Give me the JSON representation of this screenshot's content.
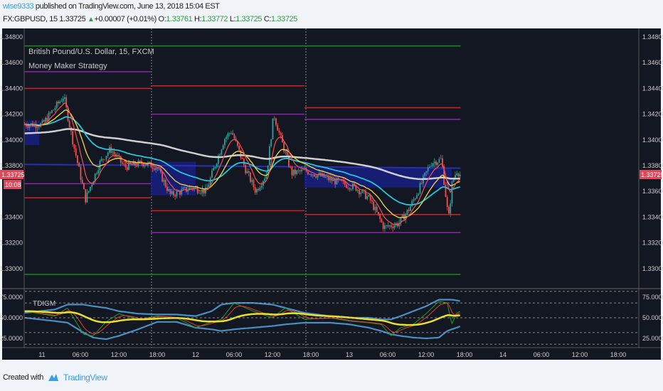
{
  "header": {
    "user": "wise9333",
    "published": " published on TradingView.com, June 13, 2018 15:04 EST",
    "symbol": "FX:GBPUSD, 15",
    "last": "1.33725",
    "change": "+0.00007 (+0.01%)",
    "o_label": "O:",
    "o": "1.33761",
    "h_label": "H:",
    "h": "1.33772",
    "l_label": "L:",
    "l": "1.33725",
    "c_label": "C:",
    "c": "1.33725"
  },
  "legend": {
    "title": "British Pound/U.S. Dollar, 15, FXCM",
    "strategy": "Money Maker Strategy",
    "indicator": "TDIGM"
  },
  "price_label": "1.33725",
  "countdown": "10:08",
  "footer": {
    "created": "Created with",
    "brand": "TradingView"
  },
  "colors": {
    "bg": "#131722",
    "up": "#26a69a",
    "down": "#ef5350",
    "level_red": "#d42020",
    "level_purple": "#8e24aa",
    "level_green": "#1b8a1b",
    "price_tag": "#e0485a"
  },
  "chart_data": {
    "type": "candlestick",
    "title": "British Pound/U.S. Dollar, 15, FXCM",
    "price_ticks": [
      "1.34800",
      "1.34600",
      "1.34400",
      "1.34200",
      "1.34000",
      "1.33800",
      "1.33600",
      "1.33400",
      "1.33200",
      "1.33000"
    ],
    "ylim": [
      1.3292,
      1.3495
    ],
    "time_ticks": [
      "11",
      "06:00",
      "12:00",
      "18:00",
      "12",
      "06:00",
      "12:00",
      "18:00",
      "13",
      "06:00",
      "12:00",
      "18:00",
      "14",
      "06:00",
      "12:00",
      "18:00"
    ],
    "price_path_hours": [
      -2.7,
      0,
      3.4,
      4.6,
      6.8,
      9,
      10.7,
      12.9,
      15.7,
      17.9,
      20.1,
      23.4,
      25.6,
      26.8,
      28.5,
      29.6,
      31.8,
      33.4,
      35.1,
      36.2,
      37.3,
      39,
      41.2,
      45.7,
      49,
      51.2,
      53.4,
      55.7,
      57.3,
      59,
      60.7,
      62.4,
      63.5,
      64.1,
      64.8,
      65.4
    ],
    "price_path": [
      1.3412,
      1.3412,
      1.3434,
      1.3404,
      1.3354,
      1.3382,
      1.3393,
      1.3379,
      1.3382,
      1.3379,
      1.3357,
      1.3363,
      1.336,
      1.3377,
      1.3401,
      1.3407,
      1.3377,
      1.336,
      1.3374,
      1.342,
      1.3401,
      1.3374,
      1.3376,
      1.3368,
      1.3363,
      1.3354,
      1.3332,
      1.3335,
      1.3346,
      1.3363,
      1.3382,
      1.3385,
      1.3338,
      1.3368,
      1.3376,
      1.33725
    ],
    "levels": [
      {
        "color": "green",
        "price": 1.3473,
        "from": -2.7,
        "to": 65.4
      },
      {
        "color": "green",
        "price": 1.32955,
        "from": -2.7,
        "to": 65.4
      },
      {
        "color": "purple",
        "price": 1.3453,
        "from": -2.7,
        "to": 17
      },
      {
        "color": "red",
        "price": 1.344,
        "from": -2.7,
        "to": 17
      },
      {
        "color": "purple",
        "price": 1.3366,
        "from": -2.7,
        "to": 17
      },
      {
        "color": "red",
        "price": 1.3355,
        "from": -2.7,
        "to": 17
      },
      {
        "color": "red",
        "price": 1.3442,
        "from": 17,
        "to": 41
      },
      {
        "color": "purple",
        "price": 1.342,
        "from": 17,
        "to": 41
      },
      {
        "color": "red",
        "price": 1.3345,
        "from": 17,
        "to": 41
      },
      {
        "color": "purple",
        "price": 1.3328,
        "from": 17,
        "to": 41
      },
      {
        "color": "red",
        "price": 1.3425,
        "from": 41,
        "to": 65.4
      },
      {
        "color": "purple",
        "price": 1.3416,
        "from": 41,
        "to": 65.4
      },
      {
        "color": "red",
        "price": 1.3342,
        "from": 41,
        "to": 65.4
      },
      {
        "color": "purple",
        "price": 1.3328,
        "from": 41,
        "to": 65.4
      }
    ],
    "indicator": {
      "name": "TDIGM",
      "ticks": [
        "75.0000",
        "50.0000",
        "25.0000"
      ],
      "ylim": [
        10,
        85
      ],
      "rsi_hours": [
        -2.7,
        2,
        4,
        6.5,
        8,
        10,
        12,
        15,
        18,
        21,
        24,
        26.5,
        28,
        30,
        33,
        36,
        38,
        41,
        45,
        48,
        51,
        53,
        54.5,
        56,
        58,
        60,
        62,
        63.3,
        64,
        64.8,
        65.4
      ],
      "rsi": [
        58,
        52,
        62,
        30,
        28,
        45,
        55,
        48,
        52,
        50,
        38,
        45,
        48,
        68,
        58,
        50,
        62,
        48,
        50,
        46,
        44,
        42,
        28,
        38,
        42,
        55,
        70,
        68,
        42,
        56,
        58
      ],
      "upper_band": [
        56,
        60,
        66,
        66,
        64,
        62,
        58,
        55,
        54,
        54,
        52,
        58,
        66,
        68,
        68,
        66,
        62,
        56,
        52,
        50,
        50,
        48,
        48,
        52,
        58,
        64,
        72,
        72,
        72,
        71,
        70
      ],
      "lower_band": [
        50,
        46,
        44,
        32,
        26,
        24,
        28,
        36,
        45,
        45,
        38,
        36,
        34,
        36,
        38,
        40,
        42,
        44,
        44,
        42,
        38,
        34,
        30,
        28,
        26,
        25,
        26,
        34,
        36,
        38,
        40
      ]
    }
  }
}
